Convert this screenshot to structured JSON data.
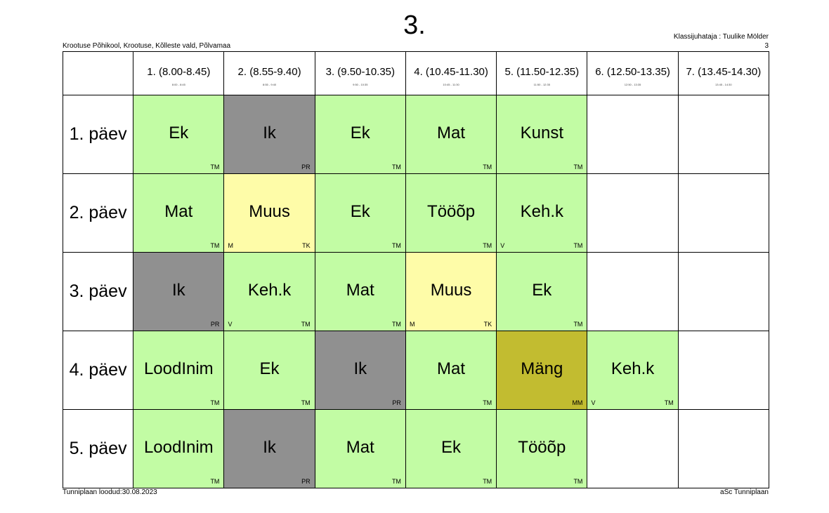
{
  "header": {
    "title": "3.",
    "school": "Krootuse Põhikool, Krootuse, Kõlleste vald, Põlvamaa",
    "class_teacher": "Klassijuhataja : Tuulike Mölder",
    "class_number": "3"
  },
  "periods": [
    {
      "label": "1. (8.00-8.45)",
      "time": "8:00 - 8:45"
    },
    {
      "label": "2. (8.55-9.40)",
      "time": "8:55 - 9:40"
    },
    {
      "label": "3. (9.50-10.35)",
      "time": "9:50 - 10:35"
    },
    {
      "label": "4. (10.45-11.30)",
      "time": "10:45 - 11:30"
    },
    {
      "label": "5. (11.50-12.35)",
      "time": "11:50 - 12:35"
    },
    {
      "label": "6. (12.50-13.35)",
      "time": "12:50 - 13:35"
    },
    {
      "label": "7. (13.45-14.30)",
      "time": "13:45 - 14:30"
    }
  ],
  "days": [
    {
      "name": "1. päev",
      "lessons": [
        {
          "subject": "Ek",
          "teacher": "TM",
          "group": "",
          "color": "#c2fca4"
        },
        {
          "subject": "Ik",
          "teacher": "PR",
          "group": "",
          "color": "#909090"
        },
        {
          "subject": "Ek",
          "teacher": "TM",
          "group": "",
          "color": "#c2fca4"
        },
        {
          "subject": "Mat",
          "teacher": "TM",
          "group": "",
          "color": "#c2fca4"
        },
        {
          "subject": "Kunst",
          "teacher": "TM",
          "group": "",
          "color": "#c2fca4"
        },
        {
          "subject": "",
          "teacher": "",
          "group": "",
          "color": "#ffffff"
        },
        {
          "subject": "",
          "teacher": "",
          "group": "",
          "color": "#ffffff"
        }
      ]
    },
    {
      "name": "2. päev",
      "lessons": [
        {
          "subject": "Mat",
          "teacher": "TM",
          "group": "",
          "color": "#c2fca4"
        },
        {
          "subject": "Muus",
          "teacher": "TK",
          "group": "M",
          "color": "#fefca8"
        },
        {
          "subject": "Ek",
          "teacher": "TM",
          "group": "",
          "color": "#c2fca4"
        },
        {
          "subject": "Tööõp",
          "teacher": "TM",
          "group": "",
          "color": "#c2fca4"
        },
        {
          "subject": "Keh.k",
          "teacher": "TM",
          "group": "V",
          "color": "#c2fca4"
        },
        {
          "subject": "",
          "teacher": "",
          "group": "",
          "color": "#ffffff"
        },
        {
          "subject": "",
          "teacher": "",
          "group": "",
          "color": "#ffffff"
        }
      ]
    },
    {
      "name": "3. päev",
      "lessons": [
        {
          "subject": "Ik",
          "teacher": "PR",
          "group": "",
          "color": "#909090"
        },
        {
          "subject": "Keh.k",
          "teacher": "TM",
          "group": "V",
          "color": "#c2fca4"
        },
        {
          "subject": "Mat",
          "teacher": "TM",
          "group": "",
          "color": "#c2fca4"
        },
        {
          "subject": "Muus",
          "teacher": "TK",
          "group": "M",
          "color": "#fefca8"
        },
        {
          "subject": "Ek",
          "teacher": "TM",
          "group": "",
          "color": "#c2fca4"
        },
        {
          "subject": "",
          "teacher": "",
          "group": "",
          "color": "#ffffff"
        },
        {
          "subject": "",
          "teacher": "",
          "group": "",
          "color": "#ffffff"
        }
      ]
    },
    {
      "name": "4. päev",
      "lessons": [
        {
          "subject": "LoodInim",
          "teacher": "TM",
          "group": "",
          "color": "#c2fca4"
        },
        {
          "subject": "Ek",
          "teacher": "TM",
          "group": "",
          "color": "#c2fca4"
        },
        {
          "subject": "Ik",
          "teacher": "PR",
          "group": "",
          "color": "#909090"
        },
        {
          "subject": "Mat",
          "teacher": "TM",
          "group": "",
          "color": "#c2fca4"
        },
        {
          "subject": "Mäng",
          "teacher": "MM",
          "group": "",
          "color": "#c2bc30"
        },
        {
          "subject": "Keh.k",
          "teacher": "TM",
          "group": "V",
          "color": "#c2fca4"
        },
        {
          "subject": "",
          "teacher": "",
          "group": "",
          "color": "#ffffff"
        }
      ]
    },
    {
      "name": "5. päev",
      "lessons": [
        {
          "subject": "LoodInim",
          "teacher": "TM",
          "group": "",
          "color": "#c2fca4"
        },
        {
          "subject": "Ik",
          "teacher": "PR",
          "group": "",
          "color": "#909090"
        },
        {
          "subject": "Mat",
          "teacher": "TM",
          "group": "",
          "color": "#c2fca4"
        },
        {
          "subject": "Ek",
          "teacher": "TM",
          "group": "",
          "color": "#c2fca4"
        },
        {
          "subject": "Tööõp",
          "teacher": "TM",
          "group": "",
          "color": "#c2fca4"
        },
        {
          "subject": "",
          "teacher": "",
          "group": "",
          "color": "#ffffff"
        },
        {
          "subject": "",
          "teacher": "",
          "group": "",
          "color": "#ffffff"
        }
      ]
    }
  ],
  "footer": {
    "created": "Tunniplaan loodud:30.08.2023",
    "software": "aSc Tunniplaan"
  }
}
